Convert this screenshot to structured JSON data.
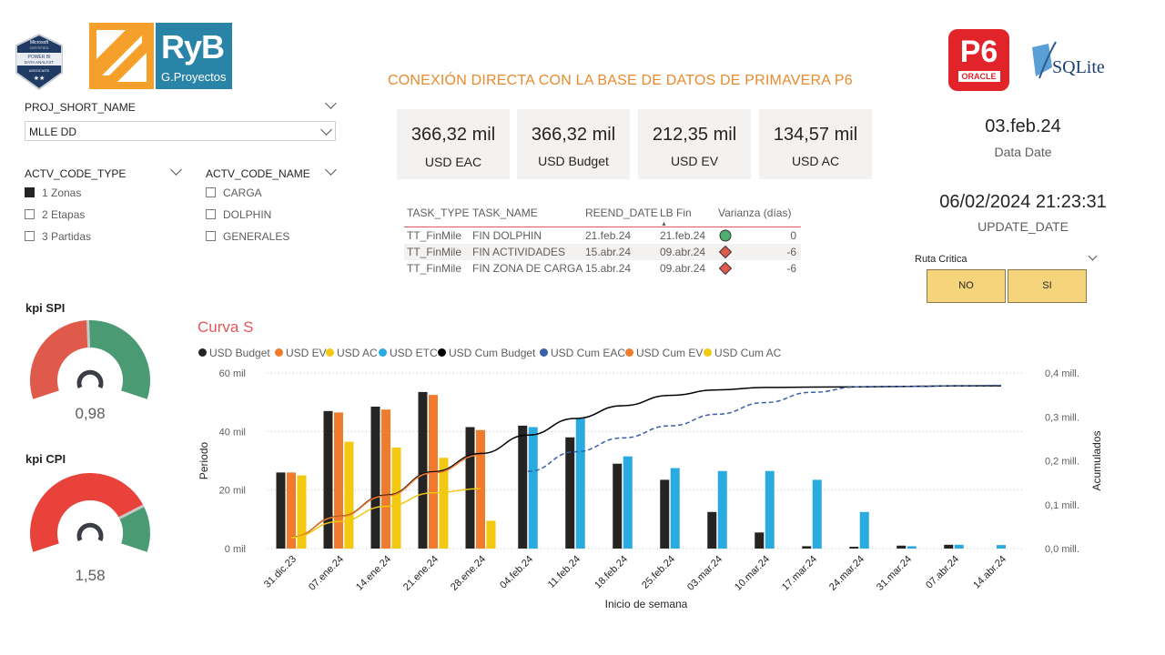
{
  "branding": {
    "badge_lines": [
      "Microsoft",
      "CERTIFIED",
      "POWER BI",
      "DATA ANALYST",
      "ASSOCIATE"
    ],
    "ryb_big": "RyB",
    "ryb_small": "G.Proyectos",
    "p6_big": "P6",
    "p6_small": "ORACLE",
    "sqlite": "SQLite"
  },
  "report_title": "CONEXIÓN DIRECTA CON LA BASE DE DATOS DE PRIMAVERA P6",
  "slicers": {
    "proj": {
      "label": "PROJ_SHORT_NAME",
      "value": "MLLE DD"
    },
    "code_type": {
      "label": "ACTV_CODE_TYPE",
      "options": [
        {
          "label": "1 Zonas",
          "checked": true
        },
        {
          "label": "2 Etapas",
          "checked": false
        },
        {
          "label": "3 Partidas",
          "checked": false
        }
      ]
    },
    "code_name": {
      "label": "ACTV_CODE_NAME",
      "options": [
        {
          "label": "CARGA",
          "checked": false
        },
        {
          "label": "DOLPHIN",
          "checked": false
        },
        {
          "label": "GENERALES",
          "checked": false
        }
      ]
    }
  },
  "cards": [
    {
      "value": "366,32 mil",
      "label": "USD EAC"
    },
    {
      "value": "366,32 mil",
      "label": "USD Budget"
    },
    {
      "value": "212,35 mil",
      "label": "USD EV"
    },
    {
      "value": "134,57 mil",
      "label": "USD AC"
    }
  ],
  "task_table": {
    "headers": [
      "TASK_TYPE",
      "TASK_NAME",
      "REEND_DATE",
      "LB Fin",
      "Varianza (días)"
    ],
    "rows": [
      {
        "type": "TT_FinMile",
        "name": "FIN DOLPHIN",
        "reend": "21.feb.24",
        "lb": "21.feb.24",
        "status": "ok",
        "var": "0"
      },
      {
        "type": "TT_FinMile",
        "name": "FIN ACTIVIDADES",
        "reend": "15.abr.24",
        "lb": "09.abr.24",
        "status": "late",
        "var": "-6"
      },
      {
        "type": "TT_FinMile",
        "name": "FIN ZONA DE CARGA",
        "reend": "15.abr.24",
        "lb": "09.abr.24",
        "status": "late",
        "var": "-6"
      }
    ]
  },
  "data_date": {
    "value": "03.feb.24",
    "label": "Data Date"
  },
  "update_date": {
    "value": "06/02/2024 21:23:31",
    "label": "UPDATE_DATE"
  },
  "ruta_critica": {
    "label": "Ruta Critica",
    "buttons": [
      "NO",
      "SI"
    ]
  },
  "kpis": [
    {
      "title": "kpi SPI",
      "value": "0,98",
      "fraction": 0.49
    },
    {
      "title": "kpi CPI",
      "value": "1,58",
      "fraction": 0.79
    }
  ],
  "colors": {
    "budget": "#252423",
    "ev": "#f07b2c",
    "ac": "#f2c811",
    "etc": "#29abe2",
    "cum_budget": "#000000",
    "cum_eac": "#3a5fa8",
    "cum_ev": "#f07b2c",
    "cum_ac": "#f2c811",
    "gauge_good": "#4a9a74",
    "gauge_bad": "#e05a4c",
    "gauge_bad2": "#e8423a",
    "title": "#e05a5a"
  },
  "chart_data": {
    "type": "bar",
    "title": "Curva S",
    "xlabel": "Inicio de semana",
    "ylabel": "Periodo",
    "y2label": "Acumulados",
    "ylim": [
      0,
      60000
    ],
    "y2lim": [
      0,
      400000
    ],
    "y_ticks": [
      {
        "v": 0,
        "t": "0 mil"
      },
      {
        "v": 20000,
        "t": "20 mil"
      },
      {
        "v": 40000,
        "t": "40 mil"
      },
      {
        "v": 60000,
        "t": "60 mil"
      }
    ],
    "y2_ticks": [
      {
        "v": 0,
        "t": "0,0 mill."
      },
      {
        "v": 100000,
        "t": "0,1 mill."
      },
      {
        "v": 200000,
        "t": "0,2 mill."
      },
      {
        "v": 300000,
        "t": "0,3 mill."
      },
      {
        "v": 400000,
        "t": "0,4 mill."
      }
    ],
    "categories": [
      "31.dic.23",
      "07.ene.24",
      "14.ene.24",
      "21.ene.24",
      "28.ene.24",
      "04.feb.24",
      "11.feb.24",
      "18.feb.24",
      "25.feb.24",
      "03.mar.24",
      "10.mar.24",
      "17.mar.24",
      "24.mar.24",
      "31.mar.24",
      "07.abr.24",
      "14.abr.24"
    ],
    "series": [
      {
        "name": "USD Budget",
        "kind": "bar",
        "values": [
          26000,
          47000,
          48500,
          53500,
          41500,
          42000,
          38000,
          29000,
          23500,
          12500,
          5500,
          800,
          600,
          1000,
          1300,
          0
        ]
      },
      {
        "name": "USD EV",
        "kind": "bar",
        "values": [
          26000,
          46500,
          47500,
          52500,
          40500,
          null,
          null,
          null,
          null,
          null,
          null,
          null,
          null,
          null,
          null,
          null
        ]
      },
      {
        "name": "USD AC",
        "kind": "bar",
        "values": [
          25000,
          36500,
          34500,
          31000,
          9500,
          null,
          null,
          null,
          null,
          null,
          null,
          null,
          null,
          null,
          null,
          null
        ]
      },
      {
        "name": "USD ETC",
        "kind": "bar",
        "values": [
          null,
          null,
          null,
          null,
          null,
          41500,
          44500,
          31500,
          27500,
          26500,
          26500,
          23500,
          12500,
          800,
          1300,
          1200
        ]
      },
      {
        "name": "USD Cum Budget",
        "kind": "line",
        "axis": "y2",
        "values": [
          26000,
          73000,
          121500,
          175000,
          216500,
          258500,
          296500,
          325500,
          349000,
          361500,
          367000,
          367800,
          368400,
          369400,
          370700,
          370700
        ]
      },
      {
        "name": "USD Cum EAC",
        "kind": "line",
        "dashed": true,
        "axis": "y2",
        "values": [
          null,
          null,
          null,
          null,
          null,
          176000,
          220500,
          252000,
          279500,
          306000,
          332500,
          356000,
          368500,
          369300,
          370600,
          371800
        ]
      },
      {
        "name": "USD Cum EV",
        "kind": "line",
        "axis": "y2",
        "values": [
          26000,
          72500,
          120000,
          172500,
          213000,
          null,
          null,
          null,
          null,
          null,
          null,
          null,
          null,
          null,
          null,
          null
        ]
      },
      {
        "name": "USD Cum AC",
        "kind": "line",
        "axis": "y2",
        "values": [
          25000,
          61500,
          96000,
          127000,
          136500,
          null,
          null,
          null,
          null,
          null,
          null,
          null,
          null,
          null,
          null,
          null
        ]
      }
    ]
  }
}
